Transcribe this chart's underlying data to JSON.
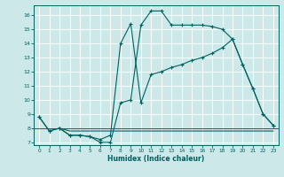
{
  "xlabel": "Humidex (Indice chaleur)",
  "xlim": [
    -0.5,
    23.5
  ],
  "ylim": [
    6.8,
    16.7
  ],
  "xticks": [
    0,
    1,
    2,
    3,
    4,
    5,
    6,
    7,
    8,
    9,
    10,
    11,
    12,
    13,
    14,
    15,
    16,
    17,
    18,
    19,
    20,
    21,
    22,
    23
  ],
  "yticks": [
    7,
    8,
    9,
    10,
    11,
    12,
    13,
    14,
    15,
    16
  ],
  "bg_color": "#cde8e8",
  "line_color": "#006060",
  "grid_color": "#b0d8d8",
  "red_line_y": 8.0,
  "line1_x": [
    0,
    1,
    2,
    3,
    4,
    5,
    6,
    7,
    8,
    9,
    10,
    11,
    12,
    13,
    14,
    15,
    16,
    17,
    18,
    19,
    20,
    21,
    22,
    23
  ],
  "line1_y": [
    8.8,
    7.8,
    8.0,
    7.5,
    7.5,
    7.4,
    7.0,
    7.0,
    9.8,
    10.0,
    15.3,
    16.3,
    16.3,
    15.3,
    15.3,
    15.3,
    15.3,
    15.2,
    15.0,
    14.3,
    12.5,
    10.8,
    9.0,
    8.2
  ],
  "line2_x": [
    0,
    1,
    2,
    3,
    4,
    5,
    6,
    7,
    8,
    9,
    10,
    11,
    12,
    13,
    14,
    15,
    16,
    17,
    18,
    19,
    20,
    21,
    22,
    23
  ],
  "line2_y": [
    8.8,
    7.8,
    8.0,
    7.5,
    7.5,
    7.4,
    7.2,
    7.5,
    14.0,
    15.4,
    9.8,
    11.8,
    12.0,
    12.3,
    12.5,
    12.8,
    13.0,
    13.3,
    13.7,
    14.3,
    12.5,
    10.8,
    9.0,
    8.2
  ],
  "line3_x": [
    2,
    3,
    4,
    5,
    6,
    7,
    8,
    9,
    10,
    11,
    12,
    13,
    14,
    15,
    16,
    17,
    18,
    19,
    20,
    21,
    22,
    23
  ],
  "line3_y": [
    8.0,
    7.8,
    7.8,
    7.8,
    7.8,
    7.8,
    7.8,
    7.8,
    7.8,
    7.8,
    7.8,
    7.8,
    7.8,
    7.8,
    7.8,
    7.8,
    7.8,
    7.8,
    7.8,
    7.8,
    7.8,
    7.8
  ]
}
